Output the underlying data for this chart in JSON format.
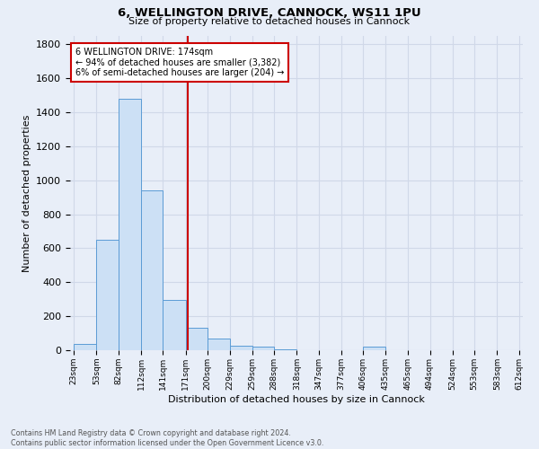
{
  "title1": "6, WELLINGTON DRIVE, CANNOCK, WS11 1PU",
  "title2": "Size of property relative to detached houses in Cannock",
  "xlabel": "Distribution of detached houses by size in Cannock",
  "ylabel": "Number of detached properties",
  "footer1": "Contains HM Land Registry data © Crown copyright and database right 2024.",
  "footer2": "Contains public sector information licensed under the Open Government Licence v3.0.",
  "annotation_line1": "6 WELLINGTON DRIVE: 174sqm",
  "annotation_line2": "← 94% of detached houses are smaller (3,382)",
  "annotation_line3": "6% of semi-detached houses are larger (204) →",
  "bar_bins": [
    23,
    53,
    82,
    112,
    141,
    171,
    200,
    229,
    259,
    288,
    318,
    347,
    377,
    406,
    435,
    465,
    494,
    524,
    553,
    583,
    612
  ],
  "bar_heights": [
    35,
    650,
    1480,
    940,
    295,
    130,
    70,
    25,
    20,
    5,
    0,
    0,
    0,
    20,
    0,
    0,
    0,
    0,
    0,
    0
  ],
  "bar_color": "#cce0f5",
  "bar_edge_color": "#5b9bd5",
  "vline_color": "#cc0000",
  "vline_x": 174,
  "annotation_box_color": "#ffffff",
  "annotation_box_edge": "#cc0000",
  "grid_color": "#d0d8e8",
  "background_color": "#e8eef8",
  "ylim": [
    0,
    1850
  ],
  "yticks": [
    0,
    200,
    400,
    600,
    800,
    1000,
    1200,
    1400,
    1600,
    1800
  ]
}
